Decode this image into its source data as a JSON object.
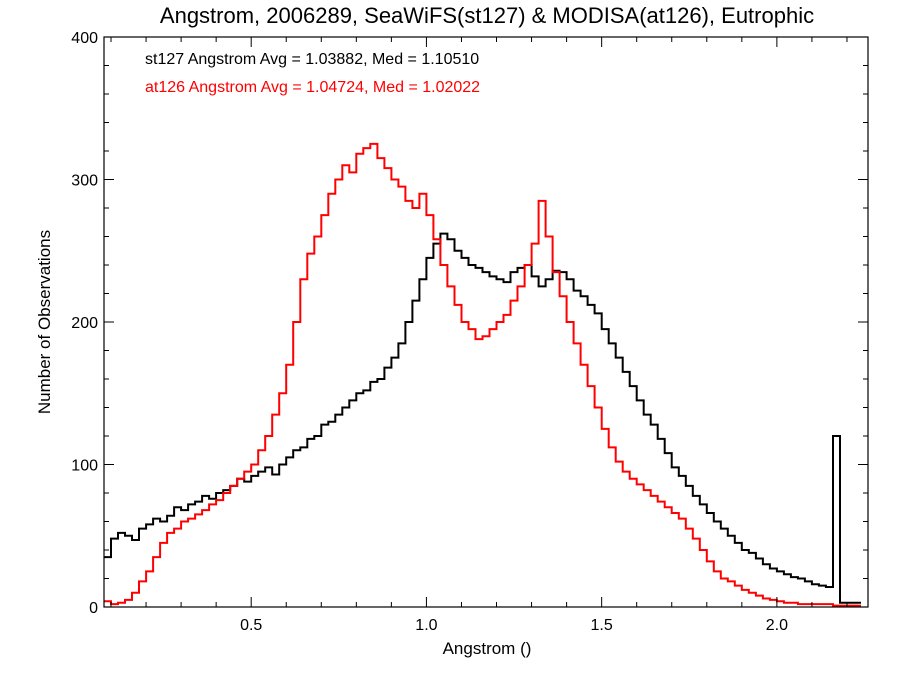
{
  "chart_data": {
    "type": "line",
    "style": "histogram-step",
    "title": "Angstrom, 2006289, SeaWiFS(st127) & MODISA(at126), Eutrophic",
    "xlabel": "Angstrom ()",
    "ylabel": "Number of Observations",
    "xlim": [
      0.08,
      2.26
    ],
    "ylim": [
      0,
      400
    ],
    "x_ticks": [
      0.5,
      1.0,
      1.5,
      2.0
    ],
    "x_tick_labels": [
      "0.5",
      "1.0",
      "1.5",
      "2.0"
    ],
    "y_ticks": [
      0,
      100,
      200,
      300,
      400
    ],
    "y_tick_labels": [
      "0",
      "100",
      "200",
      "300",
      "400"
    ],
    "grid": false,
    "annotations": [
      {
        "text": "st127 Angstrom Avg = 1.03882, Med = 1.10510",
        "color": "#000000"
      },
      {
        "text": "at126 Angstrom Avg = 1.04724, Med = 1.02022",
        "color": "#ff0000"
      }
    ],
    "series": [
      {
        "color": "#000000",
        "x": [
          0.08,
          0.1,
          0.12,
          0.14,
          0.16,
          0.18,
          0.2,
          0.22,
          0.24,
          0.26,
          0.28,
          0.3,
          0.32,
          0.34,
          0.36,
          0.38,
          0.4,
          0.42,
          0.44,
          0.46,
          0.48,
          0.5,
          0.52,
          0.54,
          0.56,
          0.58,
          0.6,
          0.62,
          0.64,
          0.66,
          0.68,
          0.7,
          0.72,
          0.74,
          0.76,
          0.78,
          0.8,
          0.82,
          0.84,
          0.86,
          0.88,
          0.9,
          0.92,
          0.94,
          0.96,
          0.98,
          1.0,
          1.02,
          1.04,
          1.06,
          1.08,
          1.1,
          1.12,
          1.14,
          1.16,
          1.18,
          1.2,
          1.22,
          1.24,
          1.26,
          1.28,
          1.3,
          1.32,
          1.34,
          1.36,
          1.38,
          1.4,
          1.42,
          1.44,
          1.46,
          1.48,
          1.5,
          1.52,
          1.54,
          1.56,
          1.58,
          1.6,
          1.62,
          1.64,
          1.66,
          1.68,
          1.7,
          1.72,
          1.74,
          1.76,
          1.78,
          1.8,
          1.82,
          1.84,
          1.86,
          1.88,
          1.9,
          1.92,
          1.94,
          1.96,
          1.98,
          2.0,
          2.02,
          2.04,
          2.06,
          2.08,
          2.1,
          2.12,
          2.14,
          2.16,
          2.18,
          2.2,
          2.22
        ],
        "y": [
          35,
          48,
          52,
          50,
          47,
          55,
          58,
          62,
          60,
          64,
          70,
          68,
          72,
          74,
          78,
          76,
          80,
          82,
          85,
          90,
          88,
          92,
          95,
          98,
          93,
          100,
          105,
          110,
          112,
          118,
          120,
          128,
          130,
          135,
          140,
          145,
          150,
          152,
          158,
          160,
          168,
          175,
          185,
          200,
          215,
          230,
          245,
          255,
          262,
          258,
          250,
          245,
          240,
          238,
          235,
          232,
          230,
          228,
          235,
          238,
          240,
          232,
          225,
          230,
          236,
          235,
          230,
          222,
          218,
          212,
          206,
          195,
          185,
          175,
          165,
          155,
          145,
          135,
          128,
          118,
          108,
          98,
          92,
          85,
          78,
          72,
          66,
          60,
          55,
          50,
          45,
          40,
          38,
          34,
          30,
          27,
          25,
          23,
          21,
          20,
          18,
          16,
          15,
          14,
          120,
          3,
          3,
          3
        ]
      },
      {
        "color": "#ff0000",
        "x": [
          0.08,
          0.1,
          0.12,
          0.14,
          0.16,
          0.18,
          0.2,
          0.22,
          0.24,
          0.26,
          0.28,
          0.3,
          0.32,
          0.34,
          0.36,
          0.38,
          0.4,
          0.42,
          0.44,
          0.46,
          0.48,
          0.5,
          0.52,
          0.54,
          0.56,
          0.58,
          0.6,
          0.62,
          0.64,
          0.66,
          0.68,
          0.7,
          0.72,
          0.74,
          0.76,
          0.78,
          0.8,
          0.82,
          0.84,
          0.86,
          0.88,
          0.9,
          0.92,
          0.94,
          0.96,
          0.98,
          1.0,
          1.02,
          1.04,
          1.06,
          1.08,
          1.1,
          1.12,
          1.14,
          1.16,
          1.18,
          1.2,
          1.22,
          1.24,
          1.26,
          1.28,
          1.3,
          1.32,
          1.34,
          1.36,
          1.38,
          1.4,
          1.42,
          1.44,
          1.46,
          1.48,
          1.5,
          1.52,
          1.54,
          1.56,
          1.58,
          1.6,
          1.62,
          1.64,
          1.66,
          1.68,
          1.7,
          1.72,
          1.74,
          1.76,
          1.78,
          1.8,
          1.82,
          1.84,
          1.86,
          1.88,
          1.9,
          1.92,
          1.94,
          1.96,
          1.98,
          2.0,
          2.02,
          2.04,
          2.06,
          2.08,
          2.1,
          2.12,
          2.14,
          2.16,
          2.18,
          2.2,
          2.22
        ],
        "y": [
          4,
          2,
          3,
          5,
          10,
          18,
          25,
          35,
          45,
          52,
          55,
          60,
          62,
          65,
          68,
          72,
          75,
          80,
          85,
          90,
          95,
          100,
          110,
          120,
          135,
          150,
          170,
          200,
          230,
          248,
          260,
          275,
          290,
          300,
          310,
          305,
          318,
          322,
          325,
          315,
          308,
          300,
          295,
          285,
          280,
          290,
          275,
          258,
          240,
          225,
          212,
          200,
          195,
          188,
          190,
          195,
          200,
          205,
          215,
          225,
          240,
          255,
          285,
          260,
          235,
          218,
          200,
          185,
          170,
          155,
          140,
          125,
          112,
          102,
          95,
          90,
          86,
          82,
          78,
          74,
          70,
          66,
          62,
          55,
          48,
          40,
          32,
          25,
          20,
          18,
          15,
          12,
          10,
          8,
          6,
          5,
          4,
          3,
          3,
          2,
          2,
          2,
          2,
          2,
          1,
          1,
          1,
          1
        ]
      }
    ]
  }
}
